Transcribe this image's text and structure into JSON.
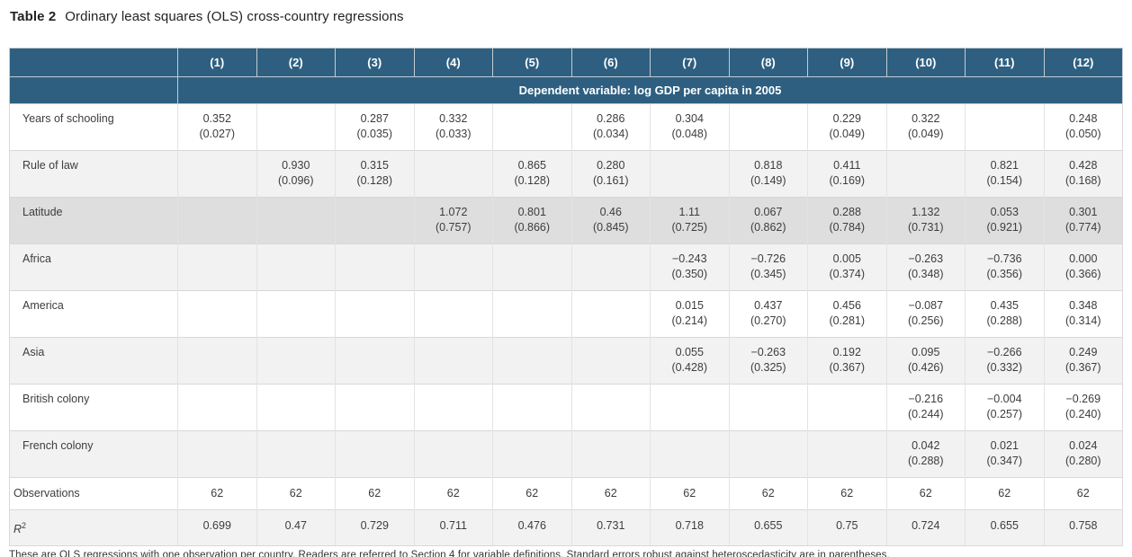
{
  "page": {
    "title_label": "Table 2",
    "title_text": "Ordinary least squares (OLS) cross-country regressions",
    "footnote": "These are OLS regressions with one observation per country. Readers are referred to Section 4 for variable definitions. Standard errors robust against heteroscedasticity are in parentheses."
  },
  "colors": {
    "header_bg": "#2e5f80",
    "header_text": "#ffffff",
    "row_alt_bg": "#f2f2f2",
    "row_highlight_bg": "#dedede",
    "grid_line": "#d8d8d8",
    "text": "#3d3d3d"
  },
  "table": {
    "column_headers": [
      "(1)",
      "(2)",
      "(3)",
      "(4)",
      "(5)",
      "(6)",
      "(7)",
      "(8)",
      "(9)",
      "(10)",
      "(11)",
      "(12)"
    ],
    "span_header": "Dependent variable: log GDP per capita in 2005",
    "rows": [
      {
        "label": "Years of schooling",
        "type": "coef",
        "highlight": false,
        "cells": [
          [
            "0.352",
            "(0.027)"
          ],
          null,
          [
            "0.287",
            "(0.035)"
          ],
          [
            "0.332",
            "(0.033)"
          ],
          null,
          [
            "0.286",
            "(0.034)"
          ],
          [
            "0.304",
            "(0.048)"
          ],
          null,
          [
            "0.229",
            "(0.049)"
          ],
          [
            "0.322",
            "(0.049)"
          ],
          null,
          [
            "0.248",
            "(0.050)"
          ]
        ]
      },
      {
        "label": "Rule of law",
        "type": "coef",
        "highlight": false,
        "cells": [
          null,
          [
            "0.930",
            "(0.096)"
          ],
          [
            "0.315",
            "(0.128)"
          ],
          null,
          [
            "0.865",
            "(0.128)"
          ],
          [
            "0.280",
            "(0.161)"
          ],
          null,
          [
            "0.818",
            "(0.149)"
          ],
          [
            "0.411",
            "(0.169)"
          ],
          null,
          [
            "0.821",
            "(0.154)"
          ],
          [
            "0.428",
            "(0.168)"
          ]
        ]
      },
      {
        "label": "Latitude",
        "type": "coef",
        "highlight": true,
        "cells": [
          null,
          null,
          null,
          [
            "1.072",
            "(0.757)"
          ],
          [
            "0.801",
            "(0.866)"
          ],
          [
            "0.46",
            "(0.845)"
          ],
          [
            "1.11",
            "(0.725)"
          ],
          [
            "0.067",
            "(0.862)"
          ],
          [
            "0.288",
            "(0.784)"
          ],
          [
            "1.132",
            "(0.731)"
          ],
          [
            "0.053",
            "(0.921)"
          ],
          [
            "0.301",
            "(0.774)"
          ]
        ]
      },
      {
        "label": "Africa",
        "type": "coef",
        "highlight": false,
        "cells": [
          null,
          null,
          null,
          null,
          null,
          null,
          [
            "−0.243",
            "(0.350)"
          ],
          [
            "−0.726",
            "(0.345)"
          ],
          [
            "0.005",
            "(0.374)"
          ],
          [
            "−0.263",
            "(0.348)"
          ],
          [
            "−0.736",
            "(0.356)"
          ],
          [
            "0.000",
            "(0.366)"
          ]
        ]
      },
      {
        "label": "America",
        "type": "coef",
        "highlight": false,
        "cells": [
          null,
          null,
          null,
          null,
          null,
          null,
          [
            "0.015",
            "(0.214)"
          ],
          [
            "0.437",
            "(0.270)"
          ],
          [
            "0.456",
            "(0.281)"
          ],
          [
            "−0.087",
            "(0.256)"
          ],
          [
            "0.435",
            "(0.288)"
          ],
          [
            "0.348",
            "(0.314)"
          ]
        ]
      },
      {
        "label": "Asia",
        "type": "coef",
        "highlight": false,
        "cells": [
          null,
          null,
          null,
          null,
          null,
          null,
          [
            "0.055",
            "(0.428)"
          ],
          [
            "−0.263",
            "(0.325)"
          ],
          [
            "0.192",
            "(0.367)"
          ],
          [
            "0.095",
            "(0.426)"
          ],
          [
            "−0.266",
            "(0.332)"
          ],
          [
            "0.249",
            "(0.367)"
          ]
        ]
      },
      {
        "label": "British colony",
        "type": "coef",
        "highlight": false,
        "cells": [
          null,
          null,
          null,
          null,
          null,
          null,
          null,
          null,
          null,
          [
            "−0.216",
            "(0.244)"
          ],
          [
            "−0.004",
            "(0.257)"
          ],
          [
            "−0.269",
            "(0.240)"
          ]
        ]
      },
      {
        "label": "French colony",
        "type": "coef",
        "highlight": false,
        "cells": [
          null,
          null,
          null,
          null,
          null,
          null,
          null,
          null,
          null,
          [
            "0.042",
            "(0.288)"
          ],
          [
            "0.021",
            "(0.347)"
          ],
          [
            "0.024",
            "(0.280)"
          ]
        ]
      },
      {
        "label": "Observations",
        "type": "stat",
        "highlight": false,
        "cells": [
          "62",
          "62",
          "62",
          "62",
          "62",
          "62",
          "62",
          "62",
          "62",
          "62",
          "62",
          "62"
        ]
      },
      {
        "label": "R",
        "sup": "2",
        "italic_label": true,
        "type": "stat",
        "highlight": false,
        "cells": [
          "0.699",
          "0.47",
          "0.729",
          "0.711",
          "0.476",
          "0.731",
          "0.718",
          "0.655",
          "0.75",
          "0.724",
          "0.655",
          "0.758"
        ]
      }
    ]
  }
}
